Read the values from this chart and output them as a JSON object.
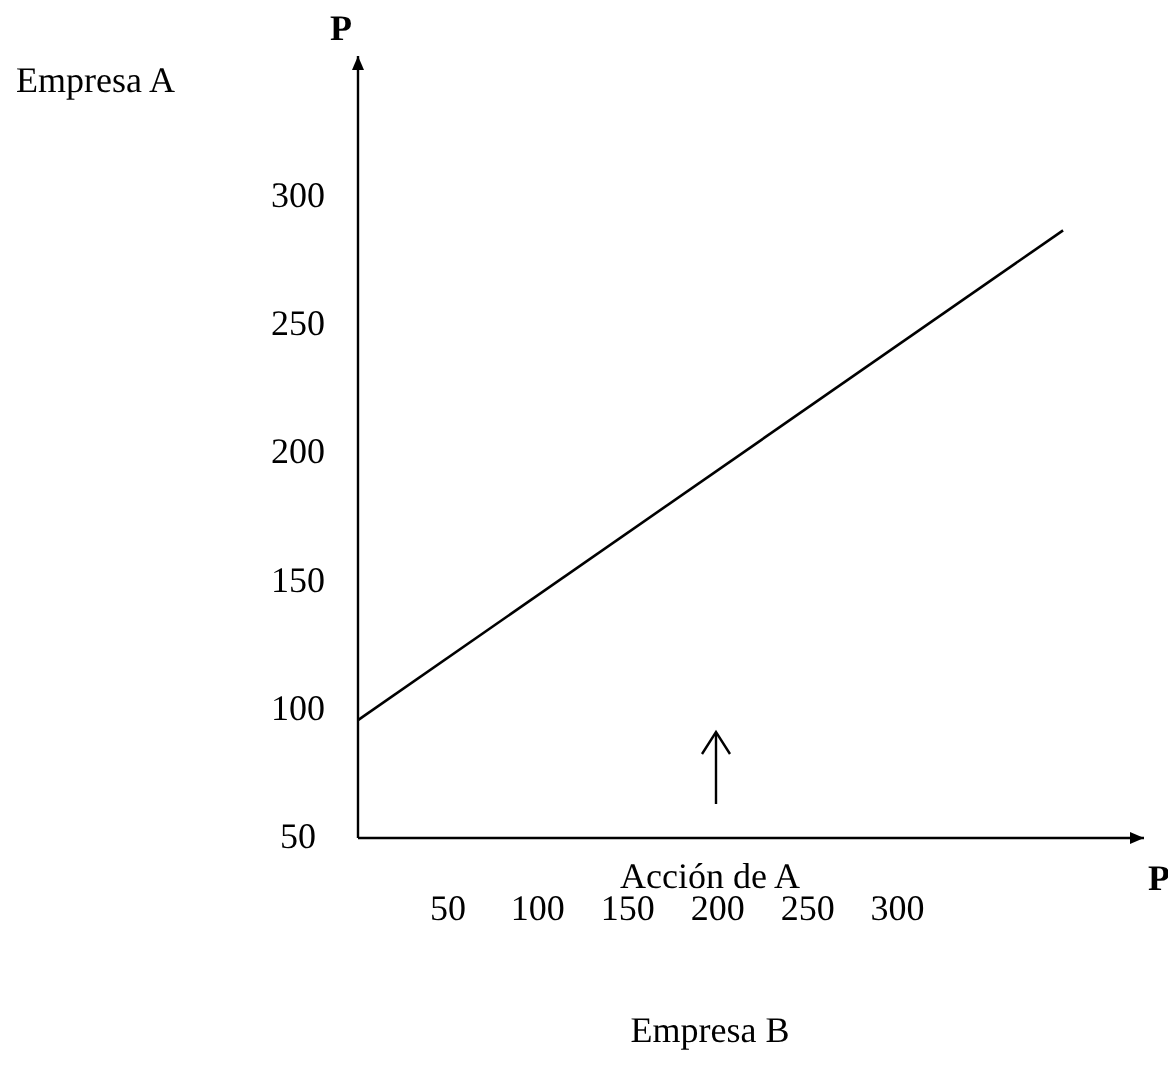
{
  "chart_data": {
    "type": "line",
    "xlabel": "P",
    "ylabel": "P",
    "annotations": [
      "Empresa A",
      "Empresa B",
      "Acción de A"
    ],
    "x": [
      0,
      392
    ],
    "series": [
      {
        "color": "#000000",
        "values": [
          96,
          287
        ]
      }
    ],
    "xlim": [
      0,
      437
    ],
    "ylim": [
      50,
      355
    ],
    "xticks": [
      50,
      100,
      150,
      200,
      250,
      300
    ],
    "yticks": [
      50,
      100,
      150,
      200,
      250,
      300
    ],
    "grid": false,
    "line_style": "solid"
  }
}
